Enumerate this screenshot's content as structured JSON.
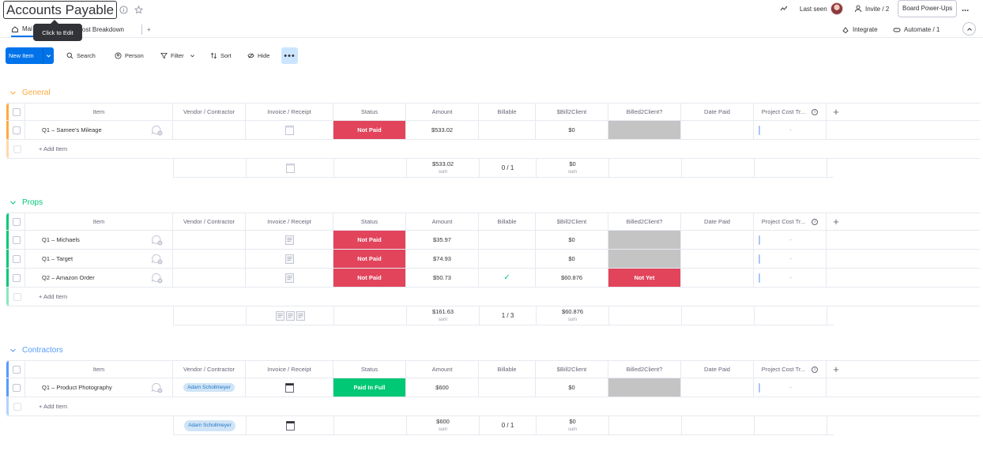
{
  "colors": {
    "accent": "#0073ea",
    "not_paid": "#e2445c",
    "paid_in_full": "#00c875",
    "general": "#fdab3d",
    "props": "#00c875",
    "contractors": "#579bfc",
    "empty_status": "#c4c4c4"
  },
  "header": {
    "title": "Accounts Payable",
    "last_seen": "Last seen",
    "invite": "Invite / 2",
    "board_powerups": "Board Power-Ups",
    "more": "..."
  },
  "tabs": {
    "main": "Mai",
    "cost_breakdown": "ost Breakdown",
    "add": "+",
    "tooltip": "Click to Edit",
    "integrate": "Integrate",
    "automate": "Automate / 1"
  },
  "toolbar": {
    "new_item": "New Item",
    "search": "Search",
    "person": "Person",
    "filter": "Filter",
    "sort": "Sort",
    "hide": "Hide",
    "more": "•••"
  },
  "columns": {
    "item": "Item",
    "vendor": "Vendor / Contractor",
    "invoice": "Invoice / Receipt",
    "status": "Status",
    "amount": "Amount",
    "billable": "Billable",
    "bill2client": "$Bill2Client",
    "billed2client": "Billed2Client?",
    "date_paid": "Date Paid",
    "project_cost": "Project Cost Tr...",
    "add": "+"
  },
  "add_item": "+ Add Item",
  "sum_label": "sum",
  "dash": "-",
  "groups": [
    {
      "name": "General",
      "color": "#fdab3d",
      "rows": [
        {
          "item": "Q1 – Samee's Mileage",
          "vendor": "",
          "status": "Not Paid",
          "amount": "$533.02",
          "billable": "",
          "bill2client": "$0",
          "billed2client": ""
        }
      ],
      "summary": {
        "amount": "$533.02",
        "billable": "0 / 1",
        "bill2client": "$0",
        "vendor": ""
      }
    },
    {
      "name": "Props",
      "color": "#00c875",
      "rows": [
        {
          "item": "Q1 – Michaels",
          "vendor": "",
          "status": "Not Paid",
          "amount": "$35.97",
          "billable": "",
          "bill2client": "$0",
          "billed2client": ""
        },
        {
          "item": "Q1 – Target",
          "vendor": "",
          "status": "Not Paid",
          "amount": "$74.93",
          "billable": "",
          "bill2client": "$0",
          "billed2client": ""
        },
        {
          "item": "Q2 – Amazon Order",
          "vendor": "",
          "status": "Not Paid",
          "amount": "$50.73",
          "billable": "✓",
          "bill2client": "$60.876",
          "billed2client": "Not Yet"
        }
      ],
      "summary": {
        "amount": "$161.63",
        "billable": "1 / 3",
        "bill2client": "$60.876",
        "vendor": ""
      }
    },
    {
      "name": "Contractors",
      "color": "#579bfc",
      "rows": [
        {
          "item": "Q1 – Product Photography",
          "vendor": "Adam Schollmeyer",
          "status": "Paid In Full",
          "amount": "$600",
          "billable": "",
          "bill2client": "$0",
          "billed2client": ""
        }
      ],
      "summary": {
        "amount": "$600",
        "billable": "0 / 1",
        "bill2client": "$0",
        "vendor": "Adam Schollmeyer"
      }
    }
  ]
}
